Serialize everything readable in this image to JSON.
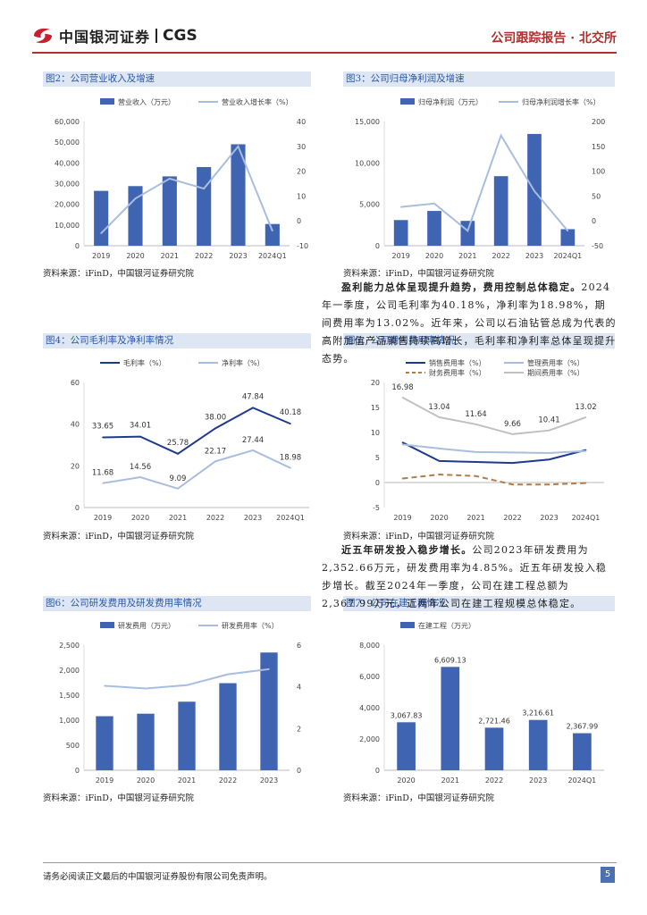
{
  "header": {
    "logo_cn": "中国银河证券",
    "logo_en": "CGS",
    "report_type": "公司跟踪报告 · 北交所"
  },
  "colors": {
    "bar": "#3f64b1",
    "line_light": "#a8bde0",
    "line_dark": "#1e3a8c",
    "line_gray": "#c0c0c0",
    "line_dash": "#b07d4a",
    "title_bg": "#dde6f2",
    "title_fg": "#2a58a6"
  },
  "figures": [
    {
      "title": "图2：公司营业收入及增速",
      "source": "资料来源：iFinD，中国银河证券研究院"
    },
    {
      "title": "图3：公司归母净利润及增速",
      "source": "资料来源：iFinD，中国银河证券研究院"
    },
    {
      "title": "图4：公司毛利率及净利率情况",
      "source": "资料来源：iFinD，中国银河证券研究院"
    },
    {
      "title": "图5：公司期间费用率情况",
      "source": "资料来源：iFinD，中国银河证券研究院"
    },
    {
      "title": "图6：公司研发费用及研发费用率情况",
      "source": "资料来源：iFinD，中国银河证券研究院"
    },
    {
      "title": "图7：公司在建工程情况",
      "source": "资料来源：iFinD，中国银河证券研究院"
    }
  ],
  "paragraphs": {
    "p1_bold": "盈利能力总体呈现提升趋势，费用控制总体稳定。",
    "p1_rest": "2024年一季度，公司毛利率为40.18%，净利率为18.98%，期间费用率为13.02%。近年来，公司以石油钻管总成为代表的高附加值产品销售持续高增长，毛利率和净利率总体呈现提升态势。",
    "p2_bold": "近五年研发投入稳步增长。",
    "p2_rest": "公司2023年研发费用为2,352.66万元，研发费用率为4.85%。近五年研发投入稳步增长。截至2024年一季度，公司在建工程总额为2,367.99万元，近两年公司在建工程规模总体稳定。"
  },
  "footer": {
    "disclaimer": "请务必阅读正文最后的中国银河证券股份有限公司免责声明。",
    "page": "5"
  },
  "chart_data": [
    {
      "type": "bar+line",
      "title": "图2：公司营业收入及增速",
      "categories": [
        "2019",
        "2020",
        "2021",
        "2022",
        "2023",
        "2024Q1"
      ],
      "series": [
        {
          "name": "营业收入（万元）",
          "axis": "left",
          "kind": "bar",
          "values": [
            26500,
            28800,
            33500,
            38000,
            49000,
            10500
          ]
        },
        {
          "name": "营业收入增长率（%）",
          "axis": "right",
          "kind": "line",
          "values": [
            -5,
            9,
            17,
            13,
            30,
            -4
          ]
        }
      ],
      "ylim_left": [
        0,
        60000
      ],
      "yticks_left": [
        "0",
        "10,000",
        "20,000",
        "30,000",
        "40,000",
        "50,000",
        "60,000"
      ],
      "ylim_right": [
        -10,
        40
      ],
      "yticks_right": [
        "-10",
        "0",
        "10",
        "20",
        "30",
        "40"
      ]
    },
    {
      "type": "bar+line",
      "title": "图3：公司归母净利润及增速",
      "categories": [
        "2019",
        "2020",
        "2021",
        "2022",
        "2023",
        "2024Q1"
      ],
      "series": [
        {
          "name": "归母净利润（万元）",
          "axis": "left",
          "kind": "bar",
          "values": [
            3100,
            4200,
            3000,
            8400,
            13500,
            2000
          ]
        },
        {
          "name": "归母净利润增长率（%）",
          "axis": "right",
          "kind": "line",
          "values": [
            28,
            35,
            -20,
            172,
            60,
            -20
          ]
        }
      ],
      "ylim_left": [
        0,
        15000
      ],
      "yticks_left": [
        "0",
        "5,000",
        "10,000",
        "15,000"
      ],
      "ylim_right": [
        -50,
        200
      ],
      "yticks_right": [
        "-50",
        "0",
        "50",
        "100",
        "150",
        "200"
      ]
    },
    {
      "type": "line",
      "title": "图4：公司毛利率及净利率情况",
      "categories": [
        "2019",
        "2020",
        "2021",
        "2022",
        "2023",
        "2024Q1"
      ],
      "series": [
        {
          "name": "毛利率（%）",
          "values": [
            33.65,
            34.01,
            25.78,
            38.0,
            47.84,
            40.18
          ],
          "labels": [
            "33.65",
            "34.01",
            "25.78",
            "38.00",
            "47.84",
            "40.18"
          ]
        },
        {
          "name": "净利率（%）",
          "values": [
            11.68,
            14.56,
            9.09,
            22.17,
            27.44,
            18.98
          ],
          "labels": [
            "11.68",
            "14.56",
            "9.09",
            "22.17",
            "27.44",
            "18.98"
          ]
        }
      ],
      "ylim": [
        0,
        60
      ],
      "yticks": [
        "0",
        "20",
        "40",
        "60"
      ]
    },
    {
      "type": "line",
      "title": "图5：公司期间费用率情况",
      "categories": [
        "2019",
        "2020",
        "2021",
        "2022",
        "2023",
        "2024Q1"
      ],
      "series": [
        {
          "name": "销售费用率（%）",
          "values": [
            8.0,
            4.3,
            4.1,
            3.9,
            4.6,
            6.5
          ]
        },
        {
          "name": "管理费用率（%）",
          "values": [
            7.6,
            6.8,
            6.1,
            6.0,
            5.9,
            6.3
          ]
        },
        {
          "name": "财务费用率（%）",
          "values": [
            0.8,
            1.6,
            1.3,
            -0.4,
            -0.4,
            -0.1
          ]
        },
        {
          "name": "期间费用率（%）",
          "values": [
            16.98,
            13.04,
            11.64,
            9.66,
            10.41,
            13.02
          ],
          "labels": [
            "16.98",
            "13.04",
            "11.64",
            "9.66",
            "10.41",
            "13.02"
          ]
        }
      ],
      "ylim": [
        -5,
        20
      ],
      "yticks": [
        "-5",
        "0",
        "5",
        "10",
        "15",
        "20"
      ]
    },
    {
      "type": "bar+line",
      "title": "图6：公司研发费用及研发费用率情况",
      "categories": [
        "2019",
        "2020",
        "2021",
        "2022",
        "2023"
      ],
      "series": [
        {
          "name": "研发费用（万元）",
          "axis": "left",
          "kind": "bar",
          "values": [
            1080,
            1130,
            1370,
            1740,
            2352.66
          ]
        },
        {
          "name": "研发费用率（%）",
          "axis": "right",
          "kind": "line",
          "values": [
            4.05,
            3.92,
            4.08,
            4.6,
            4.85
          ]
        }
      ],
      "ylim_left": [
        0,
        2500
      ],
      "yticks_left": [
        "0",
        "500",
        "1,000",
        "1,500",
        "2,000",
        "2,500"
      ],
      "ylim_right": [
        0,
        6
      ],
      "yticks_right": [
        "0",
        "2",
        "4",
        "6"
      ]
    },
    {
      "type": "bar",
      "title": "图7：公司在建工程情况",
      "categories": [
        "2020",
        "2021",
        "2022",
        "2023",
        "2024Q1"
      ],
      "series": [
        {
          "name": "在建工程（万元）",
          "values": [
            3067.83,
            6609.13,
            2721.46,
            3216.61,
            2367.99
          ],
          "labels": [
            "3,067.83",
            "6,609.13",
            "2,721.46",
            "3,216.61",
            "2,367.99"
          ]
        }
      ],
      "ylim": [
        0,
        8000
      ],
      "yticks": [
        "0",
        "2,000",
        "4,000",
        "6,000",
        "8,000"
      ]
    }
  ]
}
